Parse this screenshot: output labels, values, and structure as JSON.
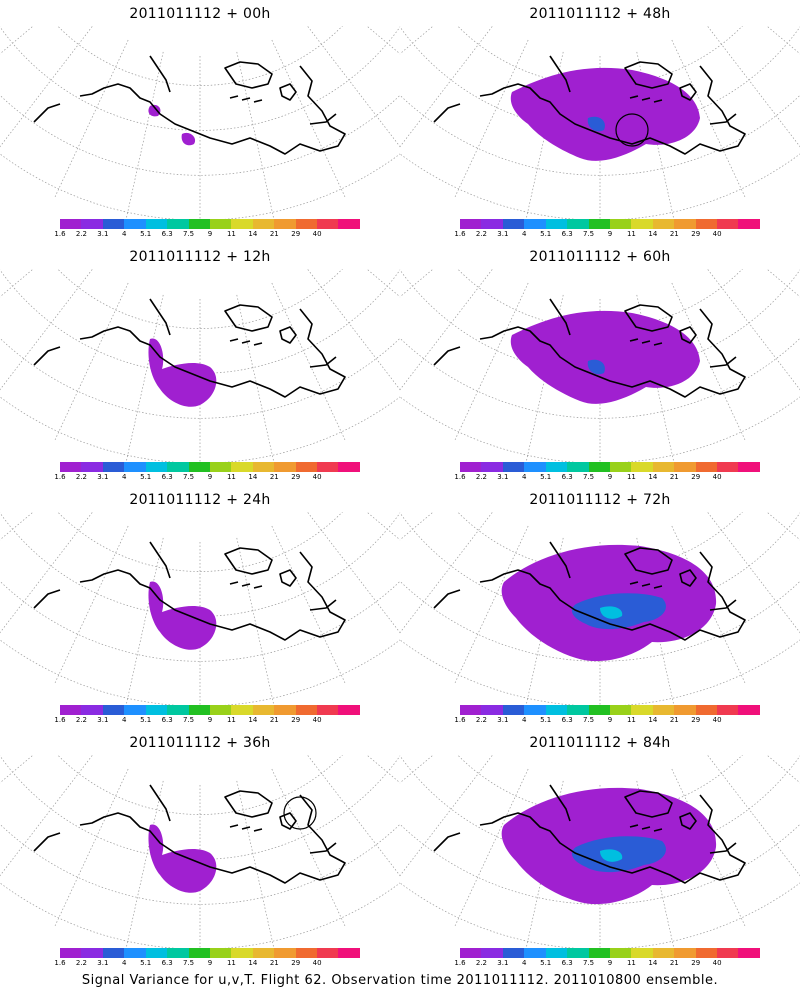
{
  "panels": [
    {
      "title": "2011011112 + 00h",
      "level": "none"
    },
    {
      "title": "2011011112 + 48h",
      "level": "medium",
      "circle": true
    },
    {
      "title": "2011011112 + 12h",
      "level": "low"
    },
    {
      "title": "2011011112 + 60h",
      "level": "medium"
    },
    {
      "title": "2011011112 + 24h",
      "level": "low"
    },
    {
      "title": "2011011112 + 72h",
      "level": "high"
    },
    {
      "title": "2011011112 + 36h",
      "level": "low",
      "circle": true
    },
    {
      "title": "2011011112 + 84h",
      "level": "high"
    }
  ],
  "colorbar": {
    "colors": [
      "#a020d0",
      "#8a2be2",
      "#2a5cd6",
      "#1e90ff",
      "#00bfe0",
      "#00c8a0",
      "#22c022",
      "#99d11a",
      "#d9d92a",
      "#e8b830",
      "#f09a30",
      "#f06a30",
      "#f03a50",
      "#f0107a"
    ],
    "labels": [
      "1.6",
      "2.2",
      "3.1",
      "4",
      "5.1",
      "6.3",
      "7.5",
      "9",
      "11",
      "14",
      "21",
      "29",
      "40"
    ]
  },
  "footer": "Signal Variance for u,v,T. Flight 62. Observation time 2011011112. 2011010800 ensemble."
}
